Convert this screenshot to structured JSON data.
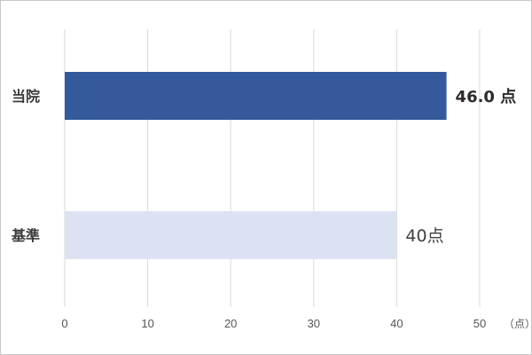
{
  "chart_data": {
    "type": "bar",
    "orientation": "horizontal",
    "categories": [
      "当院",
      "基準"
    ],
    "values": [
      46.0,
      40
    ],
    "data_labels": [
      "46.0 点",
      "40点"
    ],
    "xlim": [
      0,
      50
    ],
    "x_ticks": [
      0,
      10,
      20,
      30,
      40,
      50
    ],
    "x_unit_label": "（点）",
    "grid": "vertical",
    "legend": "none",
    "colors": [
      "#345a9c",
      "#dbe3f3"
    ]
  }
}
